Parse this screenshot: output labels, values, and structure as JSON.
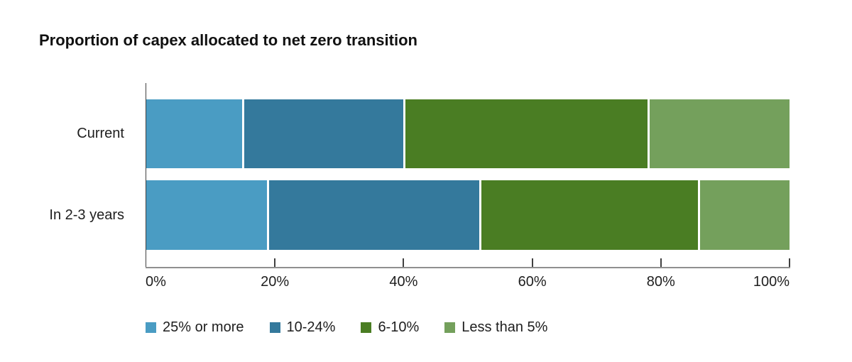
{
  "title": "Proportion of capex allocated to net zero transition",
  "chart_data": {
    "type": "bar",
    "stacked": true,
    "orientation": "horizontal",
    "title": "Proportion of capex allocated to net zero transition",
    "categories": [
      "Current",
      "In 2-3 years"
    ],
    "series": [
      {
        "name": "25% or more",
        "color": "#4a9cc3",
        "values": [
          15,
          19
        ]
      },
      {
        "name": "10-24%",
        "color": "#34799c",
        "values": [
          25,
          33
        ]
      },
      {
        "name": "6-10%",
        "color": "#4a7d23",
        "values": [
          38,
          34
        ]
      },
      {
        "name": "Less than 5%",
        "color": "#74a05c",
        "values": [
          22,
          14
        ]
      }
    ],
    "x_axis": {
      "tick_labels": [
        "0%",
        "20%",
        "40%",
        "60%",
        "80%",
        "100%"
      ],
      "tick_values": [
        0,
        20,
        40,
        60,
        80,
        100
      ],
      "xlim": [
        0,
        100
      ]
    },
    "legend_position": "bottom",
    "grid": false
  },
  "colors": {
    "axis_line": "#8f8f8f",
    "tick": "#404040",
    "text": "#1e1e1e"
  }
}
